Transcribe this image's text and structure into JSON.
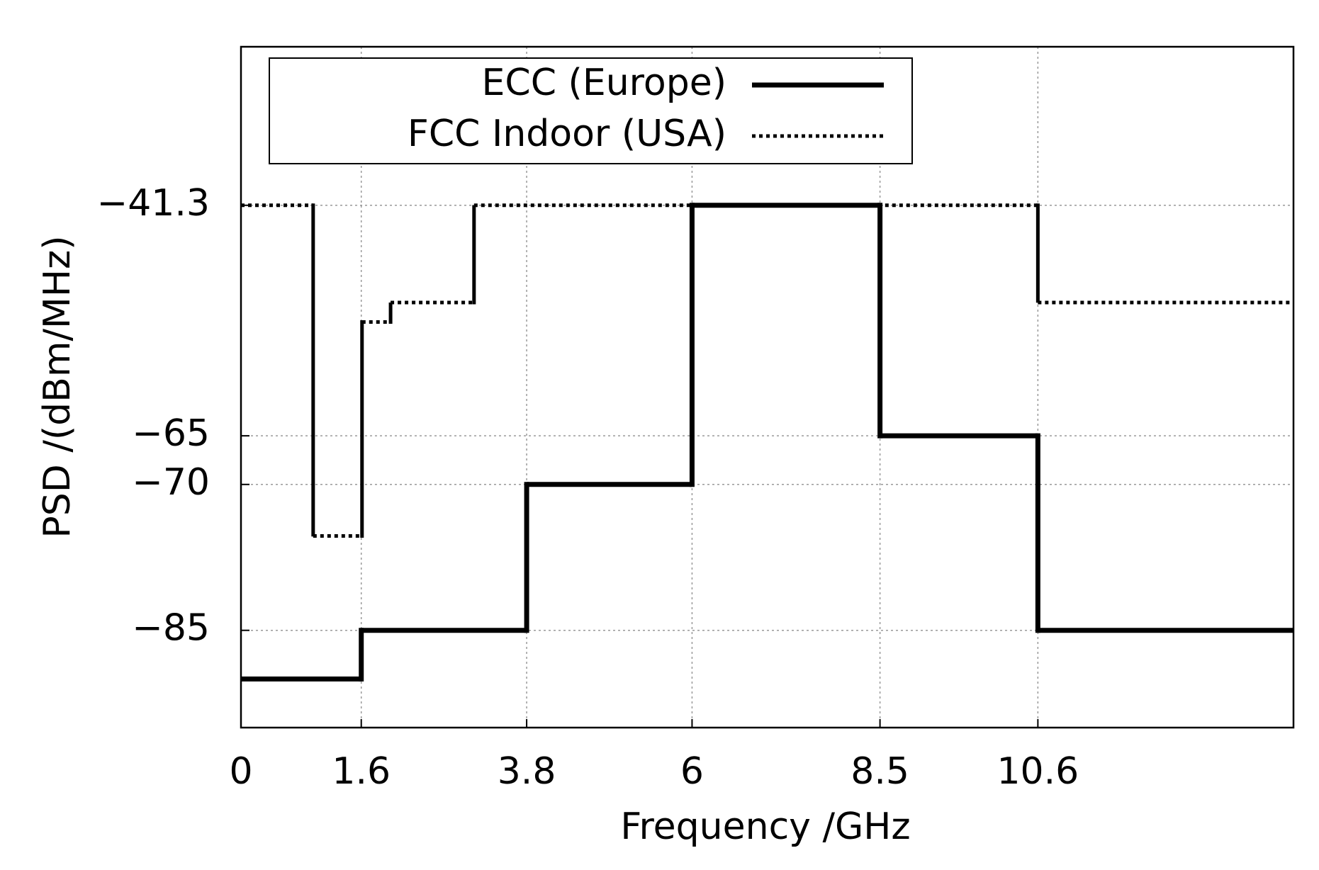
{
  "chart_data": {
    "type": "step",
    "x_label": "Frequency /GHz",
    "y_label": "PSD /(dBm/MHz)",
    "xlim": [
      0,
      14
    ],
    "ylim": [
      -95,
      -25
    ],
    "xticks": [
      0,
      1.6,
      3.8,
      6,
      8.5,
      10.6
    ],
    "yticks": [
      {
        "value": -85,
        "label": "−85"
      },
      {
        "value": -70,
        "label": "−70"
      },
      {
        "value": -65,
        "label": "−65"
      },
      {
        "value": -41.3,
        "label": "−41.3"
      }
    ],
    "grid": true,
    "legend": "top-left",
    "series": [
      {
        "name": "ECC (Europe)",
        "color": "#000000",
        "style": "solid",
        "bins": [
          0,
          1.6,
          3.8,
          6,
          8.5,
          10.6,
          14
        ],
        "values": [
          -90,
          -85,
          -70,
          -41.3,
          -65,
          -85
        ]
      },
      {
        "name": "FCC Indoor (USA)",
        "color": "#000000",
        "style": "dotted",
        "bins": [
          0,
          0.96,
          1.61,
          1.99,
          3.1,
          10.6,
          14
        ],
        "values": [
          -41.3,
          -75.3,
          -53.3,
          -51.3,
          -41.3,
          -51.3
        ]
      }
    ]
  }
}
